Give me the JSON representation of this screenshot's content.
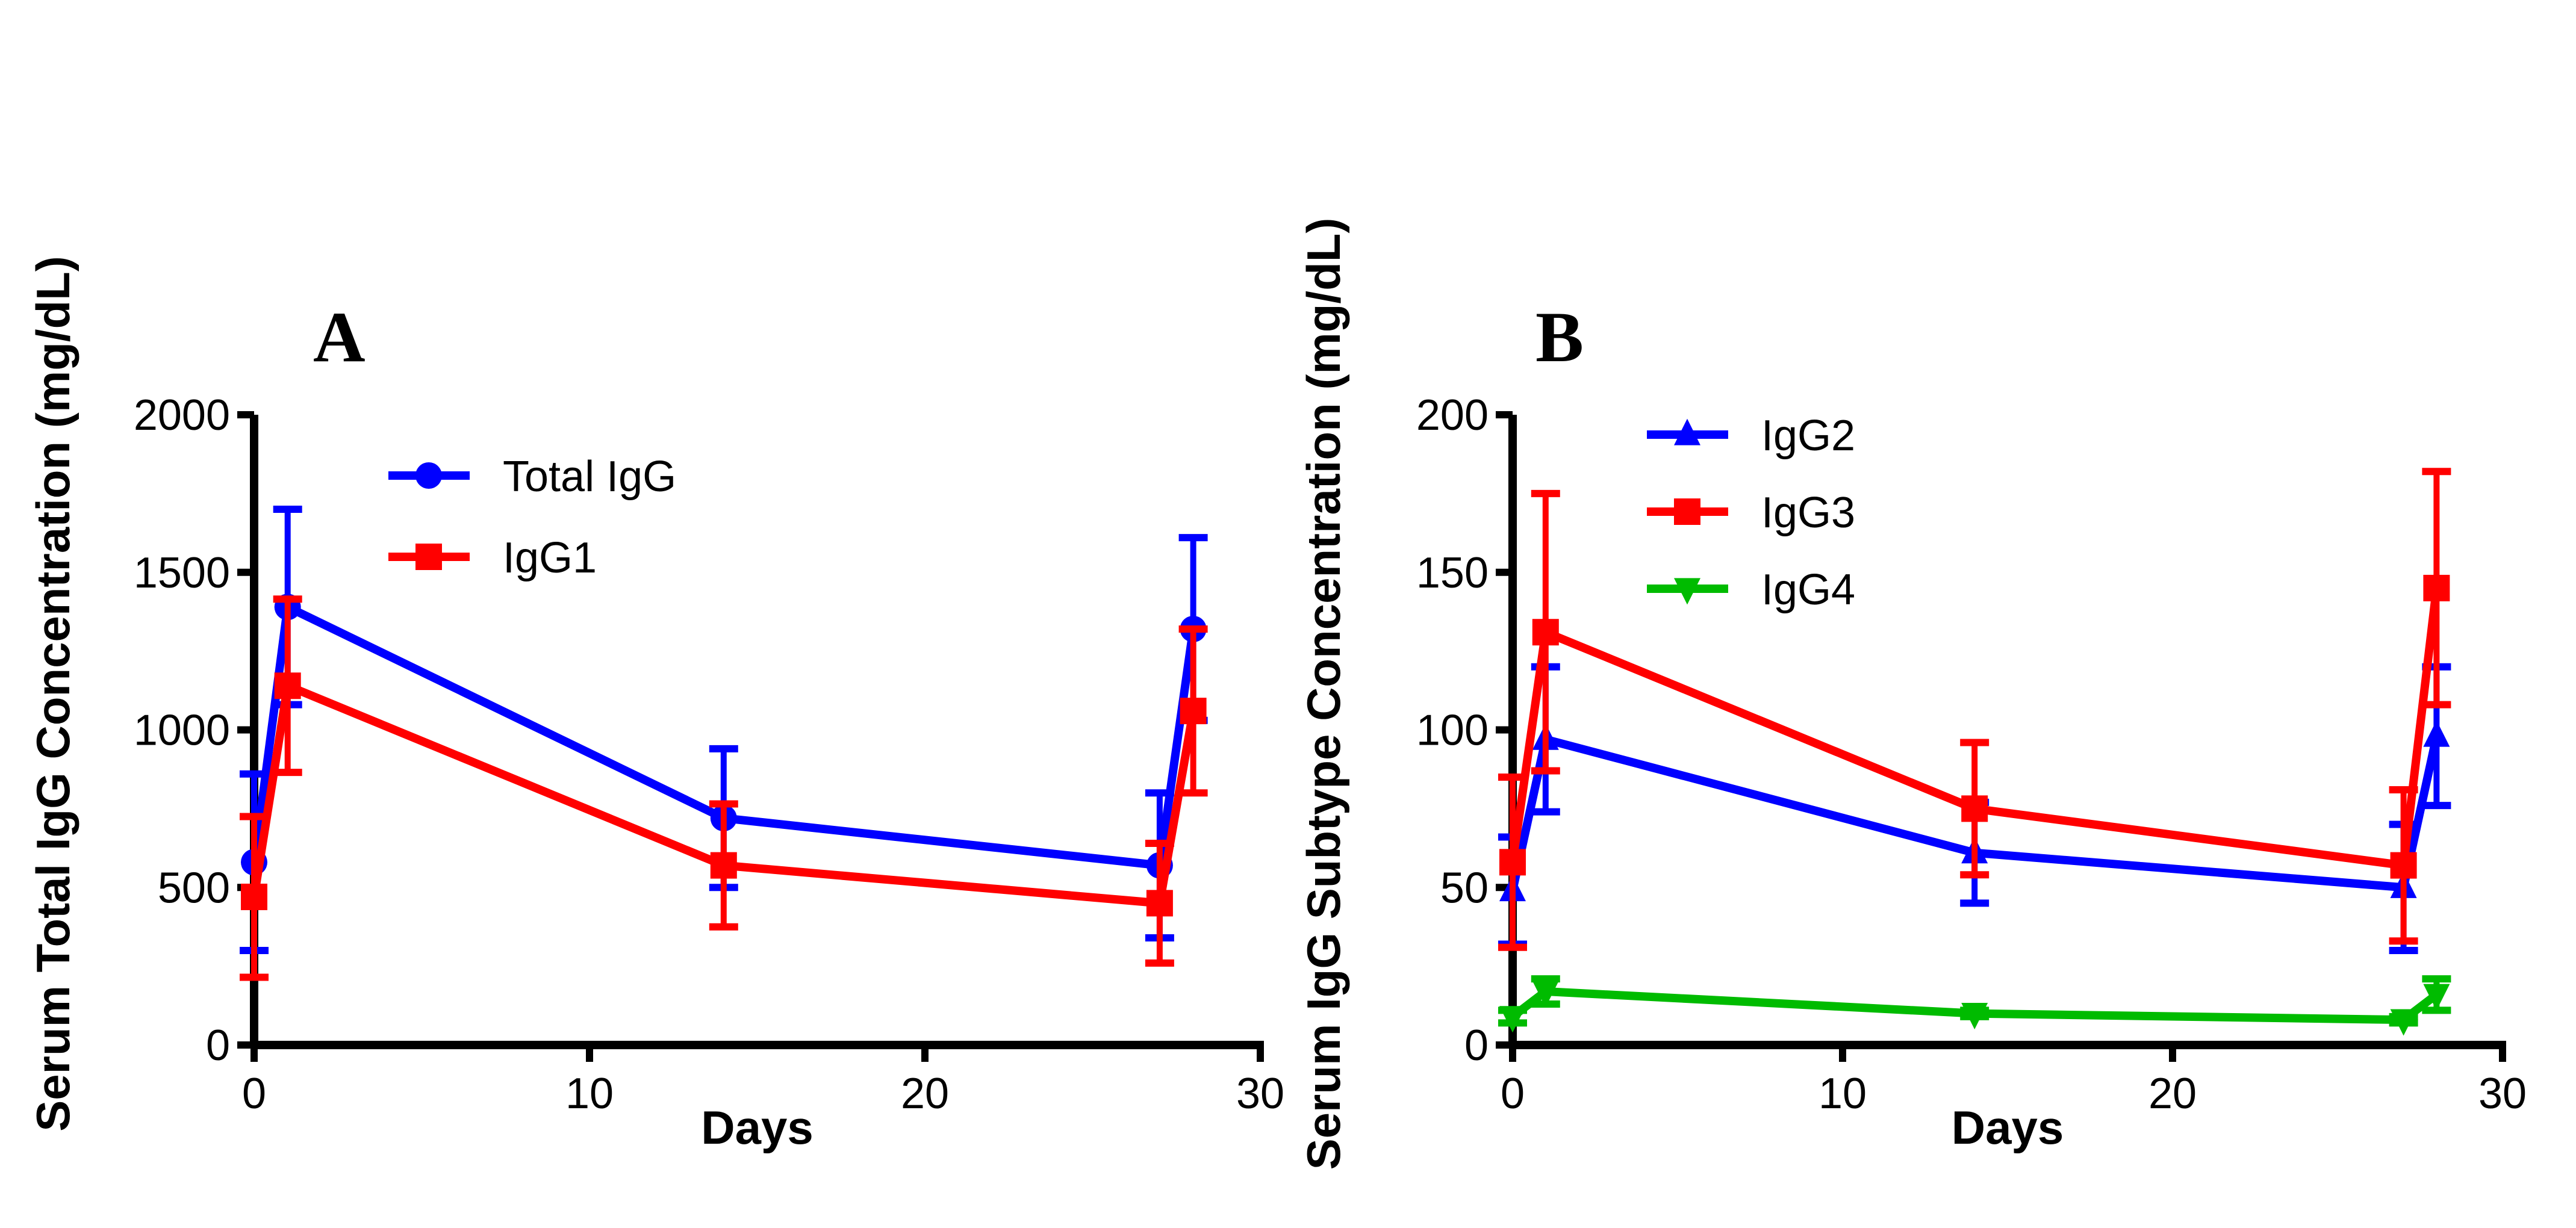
{
  "chart_data": [
    {
      "type": "line",
      "panel_label": "A",
      "xlabel": "Days",
      "ylabel": "Serum Total IgG Concentration (mg/dL)",
      "xlim": [
        0,
        30
      ],
      "ylim": [
        0,
        2000
      ],
      "xticks": [
        0,
        10,
        20,
        30
      ],
      "yticks": [
        0,
        500,
        1000,
        1500,
        2000
      ],
      "grid": false,
      "legend": "top-left",
      "x": [
        0,
        1,
        14,
        27,
        28
      ],
      "series": [
        {
          "name": "Total IgG",
          "color": "#0000ff",
          "marker": "circle",
          "values": [
            580,
            1390,
            720,
            570,
            1320
          ],
          "error": [
            280,
            310,
            220,
            230,
            290
          ]
        },
        {
          "name": "IgG1",
          "color": "#ff0000",
          "marker": "square",
          "values": [
            470,
            1140,
            570,
            450,
            1060
          ],
          "error": [
            255,
            275,
            195,
            190,
            260
          ]
        }
      ]
    },
    {
      "type": "line",
      "panel_label": "B",
      "xlabel": "Days",
      "ylabel": "Serum IgG Subtype Concentration (mg/dL)",
      "xlim": [
        0,
        30
      ],
      "ylim": [
        0,
        200
      ],
      "xticks": [
        0,
        10,
        20,
        30
      ],
      "yticks": [
        0,
        50,
        100,
        150,
        200
      ],
      "grid": false,
      "legend": "top-left",
      "x": [
        0,
        1,
        14,
        27,
        28
      ],
      "series": [
        {
          "name": "IgG2",
          "color": "#0000ff",
          "marker": "triangle-up",
          "values": [
            49,
            97,
            61,
            50,
            98
          ],
          "error": [
            17,
            23,
            16,
            20,
            22
          ]
        },
        {
          "name": "IgG3",
          "color": "#ff0000",
          "marker": "square",
          "values": [
            58,
            131,
            75,
            57,
            145
          ],
          "error": [
            27,
            44,
            21,
            24,
            37
          ]
        },
        {
          "name": "IgG4",
          "color": "#00bb00",
          "marker": "triangle-down",
          "values": [
            9,
            17,
            10,
            8,
            16
          ],
          "error": [
            2,
            4,
            1,
            1,
            5
          ]
        }
      ]
    }
  ]
}
